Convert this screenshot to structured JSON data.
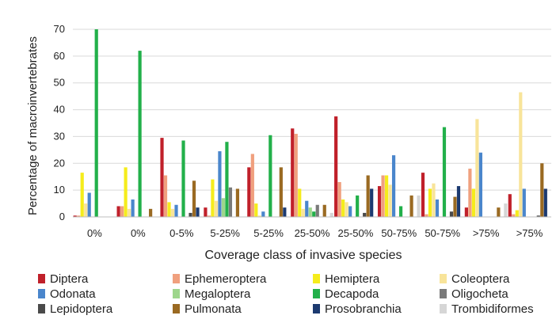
{
  "chart_data": {
    "type": "bar",
    "title": "",
    "xlabel": "Coverage class of invasive species",
    "ylabel": "Percentage of macroinvertebrates",
    "ylim": [
      0,
      70
    ],
    "yticks": [
      0,
      10,
      20,
      30,
      40,
      50,
      60,
      70
    ],
    "grid": true,
    "legend_position": "bottom",
    "categories": [
      "0%",
      "0%",
      "0-5%",
      "5-25%",
      "5-25%",
      "25-50%",
      "25-50%",
      "50-75%",
      "50-75%",
      ">75%",
      ">75%"
    ],
    "series": [
      {
        "name": "Diptera",
        "color": "#c0202a",
        "values": [
          0.5,
          4,
          29.5,
          3.5,
          18.5,
          33,
          37.5,
          11.5,
          16.5,
          3.5,
          8.5
        ]
      },
      {
        "name": "Ephemeroptera",
        "color": "#f0a07e",
        "values": [
          0.5,
          4,
          15.5,
          0.5,
          23.5,
          31,
          13,
          15.5,
          1,
          18,
          1
        ]
      },
      {
        "name": "Hemiptera",
        "color": "#f5ec1c",
        "values": [
          16.5,
          18.5,
          5.5,
          14,
          5,
          10.5,
          6.5,
          15.5,
          10.5,
          10.5,
          2.5
        ]
      },
      {
        "name": "Coleoptera",
        "color": "#f8e49a",
        "values": [
          5,
          3,
          3,
          6,
          0.5,
          3,
          5.5,
          12,
          12.5,
          36.5,
          46.5
        ]
      },
      {
        "name": "Odonata",
        "color": "#4a86cc",
        "values": [
          9,
          6.5,
          4.5,
          24.5,
          2,
          6,
          4,
          23,
          6.5,
          24,
          10.5
        ]
      },
      {
        "name": "Megaloptera",
        "color": "#9ed68c",
        "values": [
          0,
          0,
          0,
          7,
          0,
          3.5,
          0,
          0,
          0,
          0,
          0
        ]
      },
      {
        "name": "Decapoda",
        "color": "#22b04a",
        "values": [
          70,
          62,
          28.5,
          28,
          30.5,
          2,
          8,
          4,
          33.5,
          0,
          0
        ]
      },
      {
        "name": "Oligocheta",
        "color": "#7a7a7a",
        "values": [
          0,
          0,
          0,
          11,
          0,
          4.5,
          0,
          0,
          0,
          0,
          0
        ]
      },
      {
        "name": "Lepidoptera",
        "color": "#4a4a4a",
        "values": [
          0,
          0,
          1.5,
          0,
          0,
          0,
          1.5,
          0,
          2,
          0,
          0.5
        ]
      },
      {
        "name": "Pulmonata",
        "color": "#9a6a22",
        "values": [
          0,
          3,
          13.5,
          10.5,
          18.5,
          4.5,
          15.5,
          8,
          7.5,
          3.5,
          20
        ]
      },
      {
        "name": "Prosobranchia",
        "color": "#1c3a70",
        "values": [
          0,
          0,
          3.5,
          0,
          3.5,
          0,
          10.5,
          0,
          11.5,
          0,
          10.5
        ]
      },
      {
        "name": "Trombidiformes",
        "color": "#d6d6d6",
        "values": [
          0,
          0,
          0,
          0,
          0,
          1.5,
          0,
          8,
          0,
          5,
          0
        ]
      }
    ]
  }
}
